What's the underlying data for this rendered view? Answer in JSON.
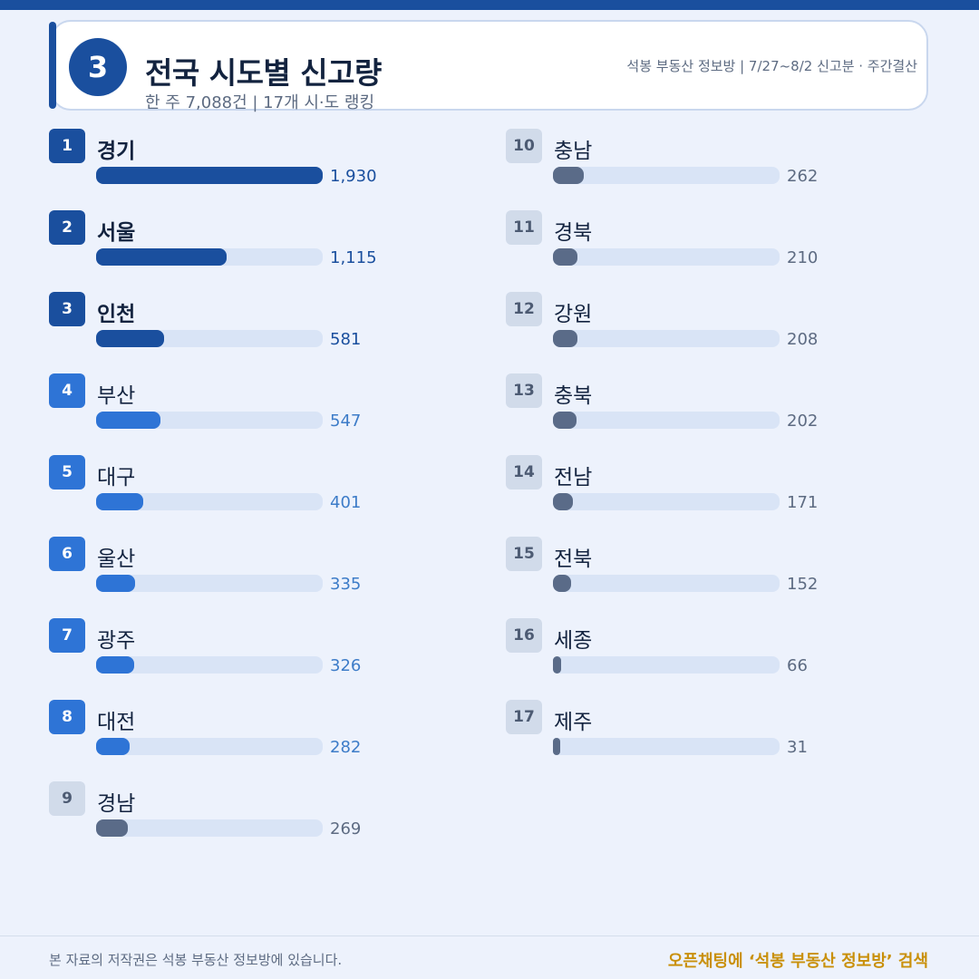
{
  "header": {
    "badge": "3",
    "title": "전국 시도별 신고량",
    "subtitle": "한 주 7,088건 | 17개 시·도 랭킹",
    "meta": "석봉 부동산 정보방 | 7/27~8/2 신고분 · 주간결산"
  },
  "footer": {
    "copyright": "본 자료의 저작권은 석봉 부동산 정보방에 있습니다.",
    "cta": "오픈채팅에 ‘석봉 부동산 정보방’ 검색"
  },
  "colors": {
    "top": "#1a4f9e",
    "mid": "#2e74d6",
    "low": "#5a6b88",
    "track": "#d9e4f6",
    "cta": "#c9900a"
  },
  "chart_data": {
    "type": "bar",
    "orientation": "horizontal",
    "max_value": 1930,
    "items": [
      {
        "rank": "1",
        "name": "경기",
        "value": 1930,
        "label": "1,930",
        "tier": "top"
      },
      {
        "rank": "2",
        "name": "서울",
        "value": 1115,
        "label": "1,115",
        "tier": "top"
      },
      {
        "rank": "3",
        "name": "인천",
        "value": 581,
        "label": "581",
        "tier": "top"
      },
      {
        "rank": "4",
        "name": "부산",
        "value": 547,
        "label": "547",
        "tier": "mid"
      },
      {
        "rank": "5",
        "name": "대구",
        "value": 401,
        "label": "401",
        "tier": "mid"
      },
      {
        "rank": "6",
        "name": "울산",
        "value": 335,
        "label": "335",
        "tier": "mid"
      },
      {
        "rank": "7",
        "name": "광주",
        "value": 326,
        "label": "326",
        "tier": "mid"
      },
      {
        "rank": "8",
        "name": "대전",
        "value": 282,
        "label": "282",
        "tier": "mid"
      },
      {
        "rank": "9",
        "name": "경남",
        "value": 269,
        "label": "269",
        "tier": "low"
      },
      {
        "rank": "10",
        "name": "충남",
        "value": 262,
        "label": "262",
        "tier": "low"
      },
      {
        "rank": "11",
        "name": "경북",
        "value": 210,
        "label": "210",
        "tier": "low"
      },
      {
        "rank": "12",
        "name": "강원",
        "value": 208,
        "label": "208",
        "tier": "low"
      },
      {
        "rank": "13",
        "name": "충북",
        "value": 202,
        "label": "202",
        "tier": "low"
      },
      {
        "rank": "14",
        "name": "전남",
        "value": 171,
        "label": "171",
        "tier": "low"
      },
      {
        "rank": "15",
        "name": "전북",
        "value": 152,
        "label": "152",
        "tier": "low"
      },
      {
        "rank": "16",
        "name": "세종",
        "value": 66,
        "label": "66",
        "tier": "low"
      },
      {
        "rank": "17",
        "name": "제주",
        "value": 31,
        "label": "31",
        "tier": "low"
      }
    ]
  }
}
